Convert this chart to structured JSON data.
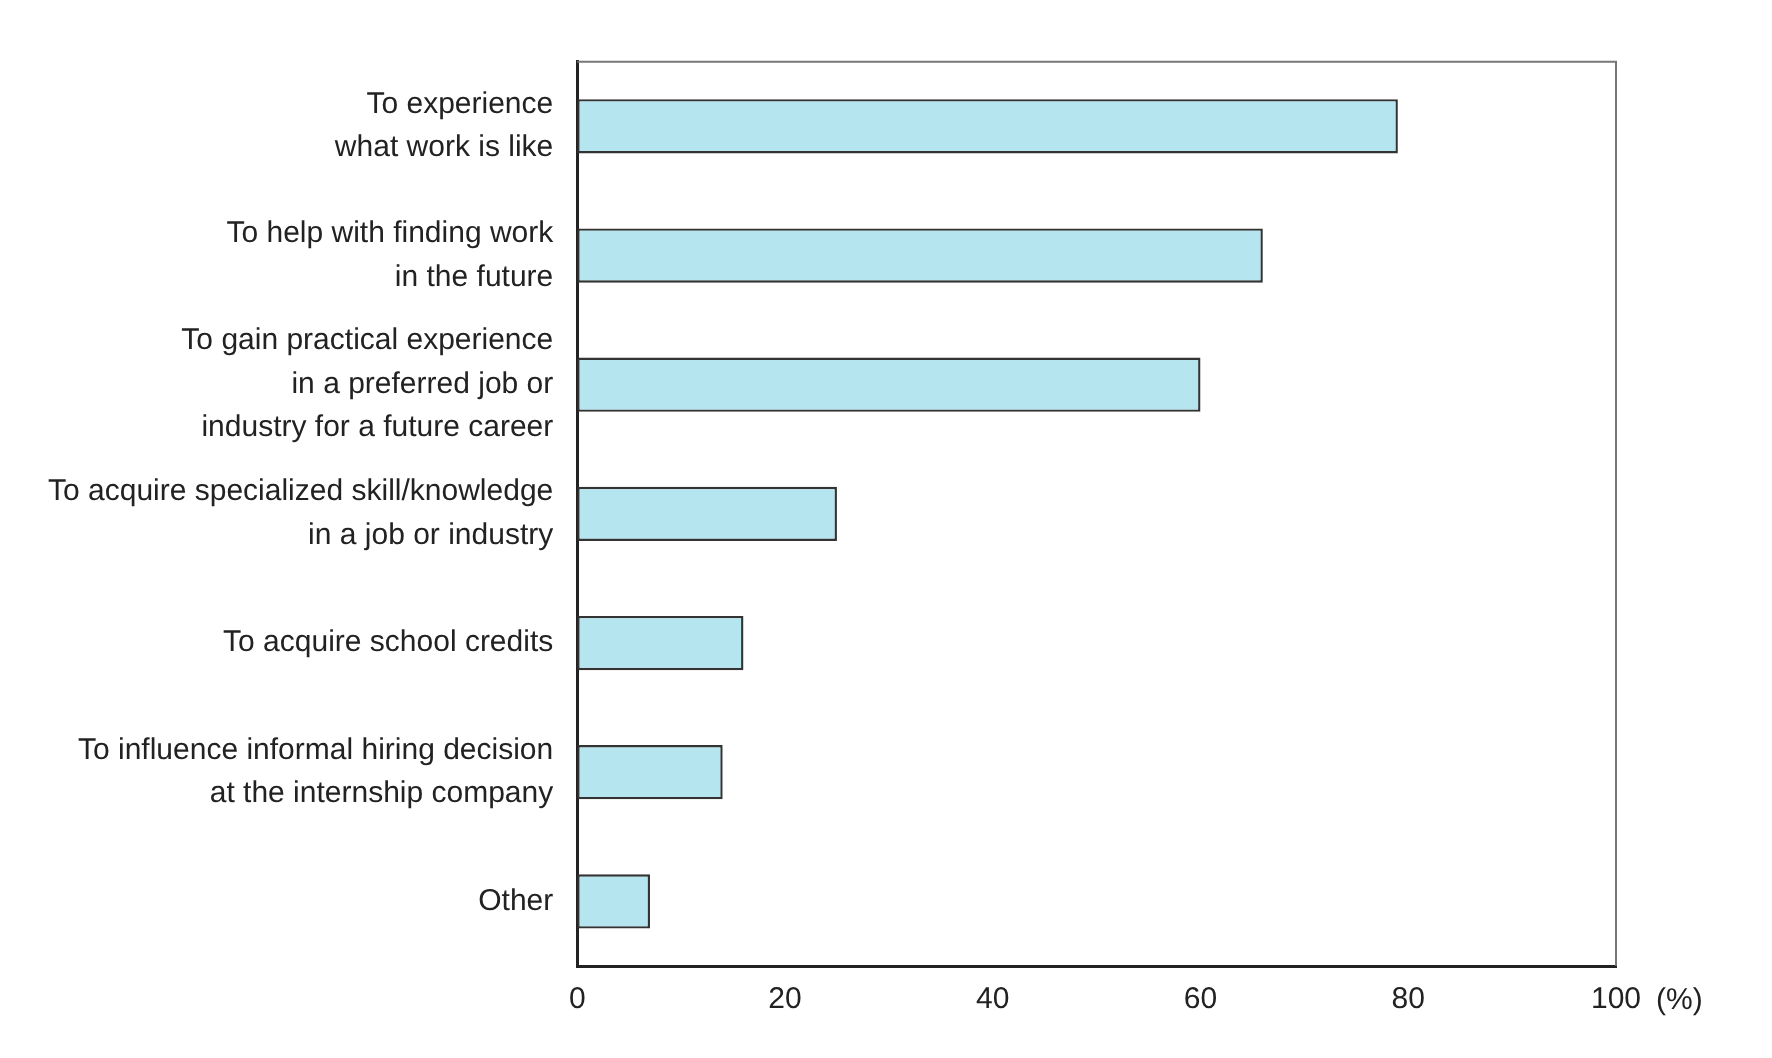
{
  "chart_data": {
    "type": "bar",
    "orientation": "horizontal",
    "categories": [
      "To experience\nwhat work is like",
      "To help with finding work\nin the future",
      "To gain practical experience\nin a preferred job or\nindustry for a future career",
      "To acquire specialized skill/knowledge\nin a job or industry",
      "To acquire school credits",
      "To influence informal hiring decision\nat the internship company",
      "Other"
    ],
    "values": [
      79,
      66,
      60,
      25,
      16,
      14,
      7
    ],
    "color": "#b5e6ef",
    "xlabel": "(%)",
    "xlim": [
      0,
      100
    ],
    "xticks": [
      0,
      20,
      40,
      60,
      80,
      100
    ],
    "grid": false,
    "legend": false
  }
}
